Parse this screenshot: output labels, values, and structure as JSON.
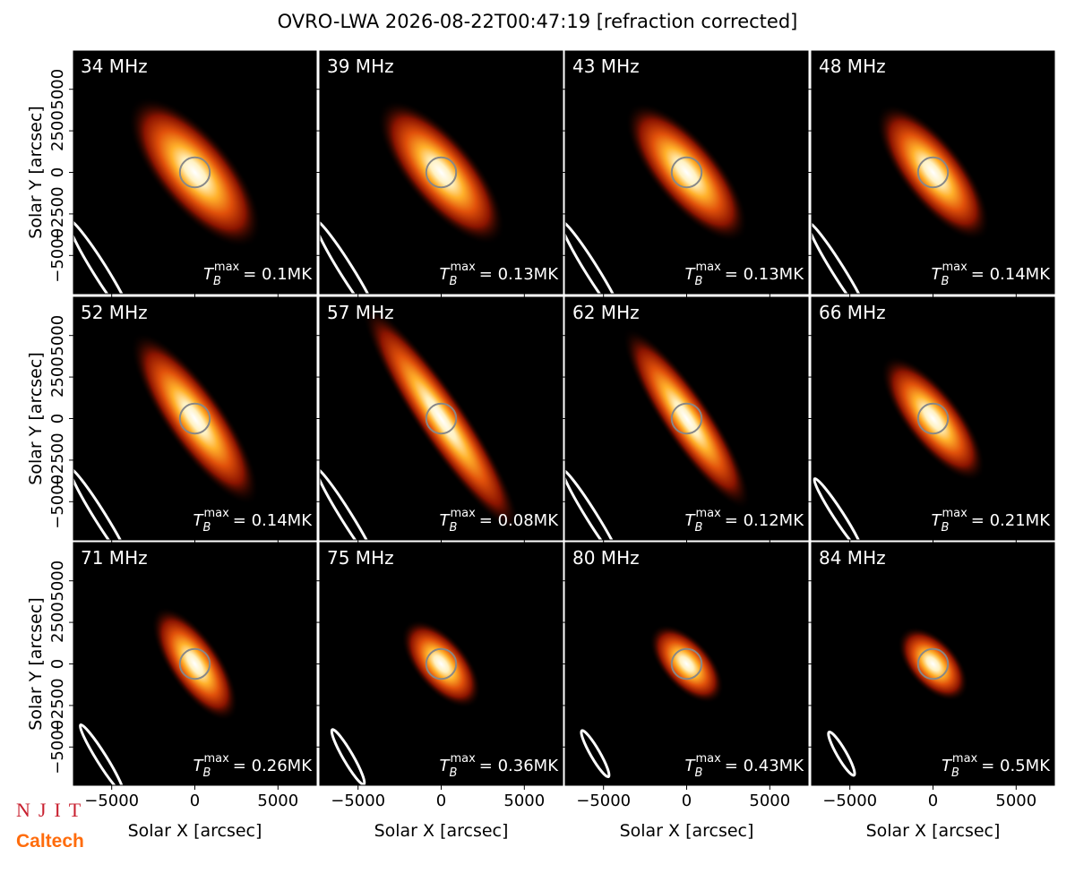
{
  "chart_data": {
    "type": "image-grid",
    "title": "OVRO-LWA 2026-08-22T00:47:19 [refraction corrected]",
    "xlabel": "Solar X [arcsec]",
    "ylabel": "Solar Y [arcsec]",
    "xlim": [
      -7300,
      7300
    ],
    "ylim": [
      -7300,
      7300
    ],
    "xticks": [
      {
        "value": -5000,
        "label": "−5000"
      },
      0,
      5000
    ],
    "yticks": [
      {
        "value": -5000,
        "label": "−5000"
      },
      {
        "value": -2500,
        "label": "−2500"
      },
      0,
      2500,
      5000
    ],
    "sun_radius": 900,
    "panels": [
      {
        "label": "34 MHz",
        "annotation": {
          "symbol": "T",
          "sub": "B",
          "sup": "max",
          "text": "= 0.1MK"
        },
        "source": {
          "a": 5600,
          "b": 2300,
          "angle": 50
        },
        "beam": {
          "x": -5700,
          "y": -5900,
          "a": 3600,
          "b": 420,
          "angle": 58
        }
      },
      {
        "label": "39 MHz",
        "annotation": {
          "symbol": "T",
          "sub": "B",
          "sup": "max",
          "text": "= 0.13MK"
        },
        "source": {
          "a": 5400,
          "b": 2100,
          "angle": 50
        },
        "beam": {
          "x": -5700,
          "y": -5900,
          "a": 3600,
          "b": 400,
          "angle": 58
        }
      },
      {
        "label": "43 MHz",
        "annotation": {
          "symbol": "T",
          "sub": "B",
          "sup": "max",
          "text": "= 0.13MK"
        },
        "source": {
          "a": 5200,
          "b": 2000,
          "angle": 50
        },
        "beam": {
          "x": -5700,
          "y": -5900,
          "a": 3500,
          "b": 380,
          "angle": 58
        }
      },
      {
        "label": "48 MHz",
        "annotation": {
          "symbol": "T",
          "sub": "B",
          "sup": "max",
          "text": "= 0.14MK"
        },
        "source": {
          "a": 5000,
          "b": 1900,
          "angle": 52
        },
        "beam": {
          "x": -5700,
          "y": -5900,
          "a": 3400,
          "b": 360,
          "angle": 58
        }
      },
      {
        "label": "52 MHz",
        "annotation": {
          "symbol": "T",
          "sub": "B",
          "sup": "max",
          "text": "= 0.14MK"
        },
        "source": {
          "a": 6200,
          "b": 1800,
          "angle": 55
        },
        "beam": {
          "x": -5700,
          "y": -5900,
          "a": 3400,
          "b": 340,
          "angle": 58
        }
      },
      {
        "label": "57 MHz",
        "annotation": {
          "symbol": "T",
          "sub": "B",
          "sup": "max",
          "text": "= 0.08MK"
        },
        "source": {
          "a": 8200,
          "b": 1500,
          "angle": 56
        },
        "beam": {
          "x": -5700,
          "y": -5900,
          "a": 3400,
          "b": 330,
          "angle": 58
        }
      },
      {
        "label": "62 MHz",
        "annotation": {
          "symbol": "T",
          "sub": "B",
          "sup": "max",
          "text": "= 0.12MK"
        },
        "source": {
          "a": 6500,
          "b": 1500,
          "angle": 56
        },
        "beam": {
          "x": -5700,
          "y": -5900,
          "a": 3300,
          "b": 320,
          "angle": 58
        }
      },
      {
        "label": "66 MHz",
        "annotation": {
          "symbol": "T",
          "sub": "B",
          "sup": "max",
          "text": "= 0.21MK"
        },
        "source": {
          "a": 4600,
          "b": 1700,
          "angle": 52
        },
        "beam": {
          "x": -5700,
          "y": -5800,
          "a": 2600,
          "b": 300,
          "angle": 57
        }
      },
      {
        "label": "71 MHz",
        "annotation": {
          "symbol": "T",
          "sub": "B",
          "sup": "max",
          "text": "= 0.26MK"
        },
        "source": {
          "a": 4000,
          "b": 1600,
          "angle": 56
        },
        "beam": {
          "x": -5600,
          "y": -5700,
          "a": 2400,
          "b": 300,
          "angle": 58
        }
      },
      {
        "label": "75 MHz",
        "annotation": {
          "symbol": "T",
          "sub": "B",
          "sup": "max",
          "text": "= 0.36MK"
        },
        "source": {
          "a": 3200,
          "b": 1600,
          "angle": 50
        },
        "beam": {
          "x": -5600,
          "y": -5600,
          "a": 1900,
          "b": 300,
          "angle": 60
        }
      },
      {
        "label": "80 MHz",
        "annotation": {
          "symbol": "T",
          "sub": "B",
          "sup": "max",
          "text": "= 0.43MK"
        },
        "source": {
          "a": 2900,
          "b": 1500,
          "angle": 48
        },
        "beam": {
          "x": -5500,
          "y": -5400,
          "a": 1600,
          "b": 280,
          "angle": 60
        }
      },
      {
        "label": "84 MHz",
        "annotation": {
          "symbol": "T",
          "sub": "B",
          "sup": "max",
          "text": "= 0.5MK"
        },
        "source": {
          "a": 2700,
          "b": 1500,
          "angle": 48
        },
        "beam": {
          "x": -5500,
          "y": -5400,
          "a": 1500,
          "b": 280,
          "angle": 60
        }
      }
    ]
  },
  "logos": {
    "njit": "NJIT",
    "caltech": "Caltech"
  }
}
